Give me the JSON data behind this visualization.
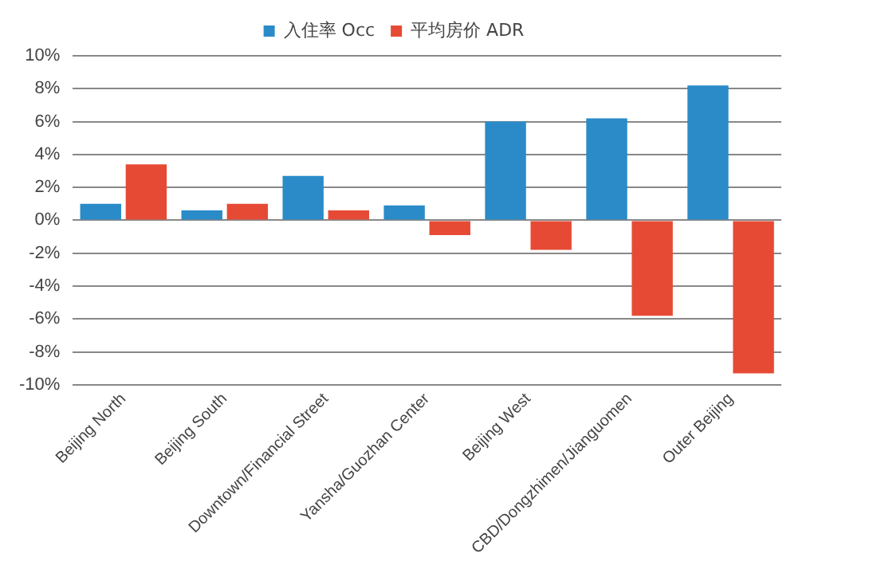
{
  "chart_data": {
    "type": "bar",
    "categories": [
      "Beijing North",
      "Beijing South",
      "Downtown/Financial Street",
      "Yansha/Guozhan Center",
      "Beijing West",
      "CBD/Dongzhimen/Jianguomen",
      "Outer Beijing"
    ],
    "series": [
      {
        "name": "入住率 Occ",
        "color": "#2a8bc8",
        "values": [
          1.0,
          0.6,
          2.7,
          0.9,
          6.0,
          6.2,
          8.2
        ]
      },
      {
        "name": "平均房价 ADR",
        "color": "#e64a35",
        "values": [
          3.4,
          1.0,
          0.6,
          -0.9,
          -1.8,
          -5.8,
          -9.3
        ]
      }
    ],
    "ylim": [
      -10,
      10
    ],
    "yticks": [
      {
        "value": -10,
        "label": "-10%"
      },
      {
        "value": -8,
        "label": "-8%"
      },
      {
        "value": -6,
        "label": "-6%"
      },
      {
        "value": -4,
        "label": "-4%"
      },
      {
        "value": -2,
        "label": "-2%"
      },
      {
        "value": 0,
        "label": "0%"
      },
      {
        "value": 2,
        "label": "2%"
      },
      {
        "value": 4,
        "label": "4%"
      },
      {
        "value": 6,
        "label": "6%"
      },
      {
        "value": 8,
        "label": "8%"
      },
      {
        "value": 10,
        "label": "10%"
      }
    ],
    "grid": "y",
    "legend": "top"
  }
}
